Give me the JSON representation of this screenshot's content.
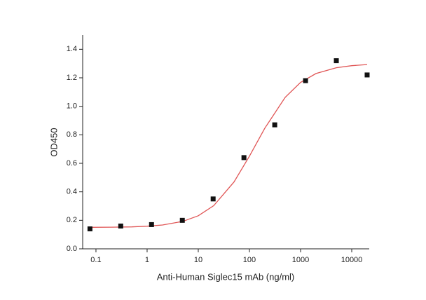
{
  "chart_data": {
    "type": "scatter",
    "x_label": "Anti-Human Siglec15 mAb (ng/ml)",
    "y_label": "OD450",
    "xscale": "log",
    "xlim": [
      0.055,
      22000
    ],
    "xticks": [
      0.1,
      1,
      10,
      100,
      1000,
      10000
    ],
    "ylim": [
      0,
      1.5
    ],
    "yticks": [
      {
        "value": 0,
        "label": "0.0"
      },
      0.2,
      0.4,
      0.6,
      0.8,
      {
        "value": 1,
        "label": "1.0"
      },
      1.2,
      1.4
    ],
    "series": [
      {
        "color": "#111111",
        "x": [
          0.0763,
          0.305,
          1.22,
          4.88,
          19.53,
          78.125,
          312.5,
          1250,
          5000,
          20000
        ],
        "values": [
          0.14,
          0.16,
          0.17,
          0.2,
          0.35,
          0.64,
          0.87,
          1.18,
          1.32,
          1.22
        ]
      }
    ],
    "fit": {
      "color": "#e05555",
      "x": [
        0.07,
        0.2,
        0.5,
        1,
        2,
        5,
        10,
        20,
        50,
        100,
        200,
        500,
        1000,
        2000,
        5000,
        10000,
        20000
      ],
      "values": [
        0.151,
        0.152,
        0.154,
        0.159,
        0.167,
        0.193,
        0.232,
        0.303,
        0.469,
        0.65,
        0.847,
        1.063,
        1.168,
        1.23,
        1.271,
        1.285,
        1.293
      ]
    }
  }
}
